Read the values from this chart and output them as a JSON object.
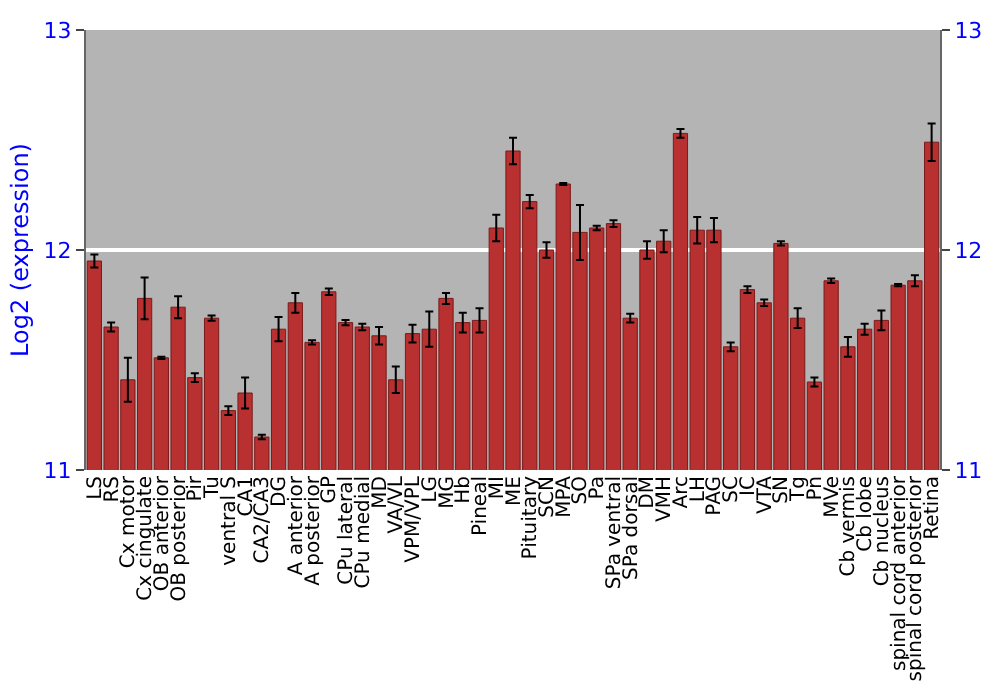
{
  "chart_data": {
    "type": "bar",
    "ylabel": "Log2 (expression)",
    "categories": [
      "LS",
      "RS",
      "Cx motor",
      "Cx cingulate",
      "OB anterior",
      "OB posterior",
      "Pir",
      "Tu",
      "ventral S",
      "CA1",
      "CA2/CA3",
      "DG",
      "A anterior",
      "A posterior",
      "GP",
      "CPu lateral",
      "CPu medial",
      "MD",
      "VA/VL",
      "VPM/VPL",
      "LG",
      "MG",
      "Hb",
      "Pineal",
      "MI",
      "ME",
      "Pituitary",
      "SCN",
      "MPA",
      "SO",
      "Pa",
      "SPa ventral",
      "SPa dorsal",
      "DM",
      "VMH",
      "Arc",
      "LH",
      "PAG",
      "SC",
      "IC",
      "VTA",
      "SN",
      "Tg",
      "Pn",
      "MVe",
      "Cb vermis",
      "Cb lobe",
      "Cb nucleus",
      "spinal cord anterior",
      "spinal cord posterior",
      "Retina"
    ],
    "values": [
      11.95,
      11.65,
      11.41,
      11.78,
      11.51,
      11.74,
      11.42,
      11.69,
      11.27,
      11.35,
      11.15,
      11.64,
      11.76,
      11.58,
      11.81,
      11.67,
      11.65,
      11.61,
      11.41,
      11.62,
      11.64,
      11.78,
      11.67,
      11.68,
      12.1,
      12.45,
      12.22,
      12.0,
      12.3,
      12.08,
      12.1,
      12.12,
      11.69,
      12.0,
      12.04,
      12.53,
      12.09,
      12.09,
      11.56,
      11.82,
      11.76,
      12.03,
      11.69,
      11.4,
      11.86,
      11.56,
      11.64,
      11.68,
      11.84,
      11.86,
      12.49
    ],
    "errors": [
      0.03,
      0.02,
      0.1,
      0.095,
      0.005,
      0.05,
      0.02,
      0.012,
      0.02,
      0.07,
      0.01,
      0.055,
      0.045,
      0.01,
      0.015,
      0.012,
      0.015,
      0.04,
      0.06,
      0.04,
      0.08,
      0.025,
      0.045,
      0.055,
      0.06,
      0.06,
      0.03,
      0.035,
      0.005,
      0.125,
      0.01,
      0.015,
      0.02,
      0.04,
      0.05,
      0.02,
      0.06,
      0.055,
      0.02,
      0.015,
      0.015,
      0.01,
      0.045,
      0.02,
      0.01,
      0.045,
      0.025,
      0.045,
      0.005,
      0.025,
      0.085
    ],
    "color": "#b83030",
    "ylim": [
      11,
      13
    ],
    "yticks": [
      11,
      12,
      13
    ],
    "y2lim": [
      11,
      13
    ],
    "y2ticks": [
      11,
      12,
      13
    ],
    "grid": "y",
    "legend": false
  }
}
